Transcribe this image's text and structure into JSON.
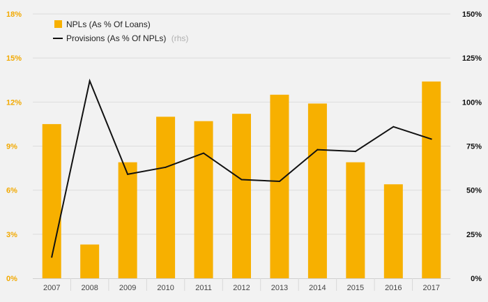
{
  "chart_data": {
    "type": "bar",
    "categories": [
      "2007",
      "2008",
      "2009",
      "2010",
      "2011",
      "2012",
      "2013",
      "2014",
      "2015",
      "2016",
      "2017"
    ],
    "series": [
      {
        "name": "NPLs (As % Of Loans)",
        "type": "bar",
        "axis": "left",
        "color": "#f7b000",
        "values": [
          10.5,
          2.3,
          7.9,
          11.0,
          10.7,
          11.2,
          12.5,
          11.9,
          7.9,
          6.4,
          13.4
        ]
      },
      {
        "name": "Provisions (As % Of NPLs)",
        "name_suffix": "(rhs)",
        "type": "line",
        "axis": "right",
        "color": "#111111",
        "values": [
          12,
          112,
          59,
          63,
          71,
          56,
          55,
          73,
          72,
          86,
          79
        ]
      }
    ],
    "y_left": {
      "ylim": [
        0,
        18
      ],
      "ticks": [
        "0%",
        "3%",
        "6%",
        "9%",
        "12%",
        "15%",
        "18%"
      ],
      "color": "#f2a900"
    },
    "y_right": {
      "ylim": [
        0,
        150
      ],
      "ticks": [
        "0%",
        "25%",
        "50%",
        "75%",
        "100%",
        "125%",
        "150%"
      ],
      "color": "#111111"
    },
    "grid": true,
    "legend": "top-left"
  }
}
